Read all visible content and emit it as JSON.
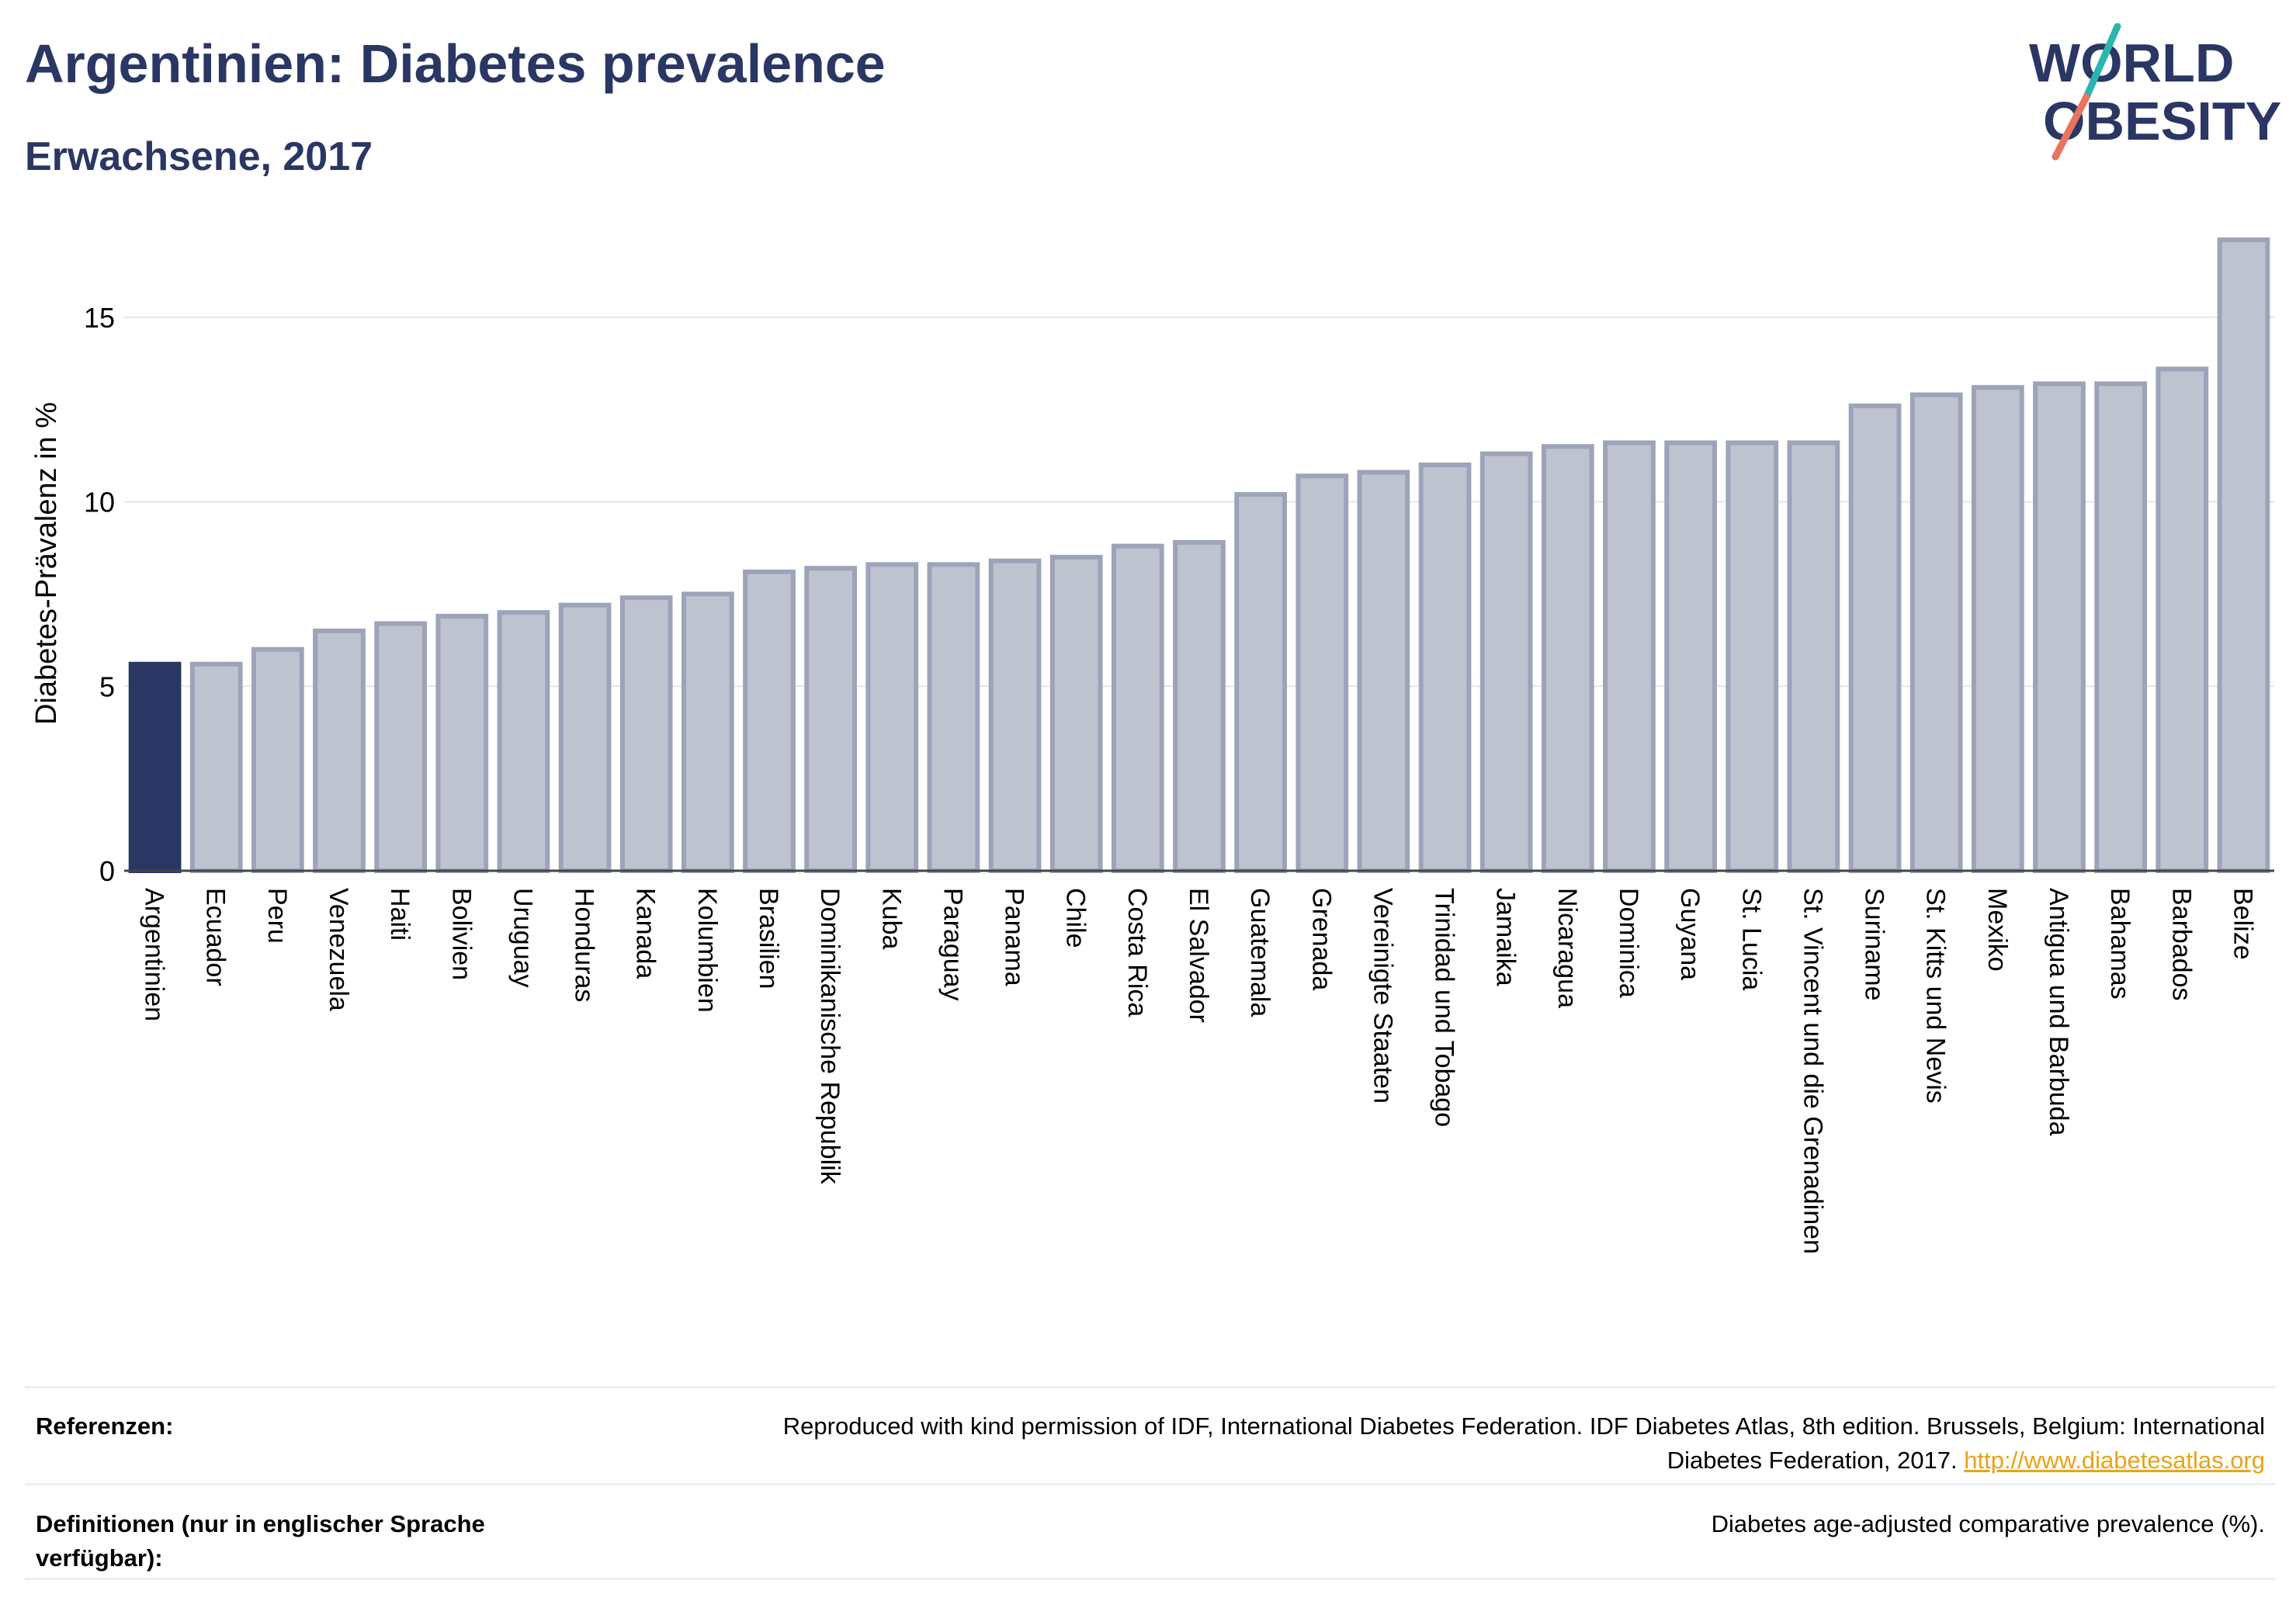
{
  "header": {
    "title": "Argentinien: Diabetes prevalence",
    "subtitle": "Erwachsene, 2017"
  },
  "logo": {
    "line1": "WORLD",
    "line2": "OBESITY"
  },
  "colors": {
    "title": "#2a3663",
    "highlight_bar": "#2a3663",
    "bar_fill": "#bfc3cf",
    "bar_stroke": "#9da3b8",
    "logo_teal": "#2bb5b0",
    "logo_coral": "#e8735f",
    "link": "#e8a317"
  },
  "chart_data": {
    "type": "bar",
    "ylabel": "Diabetes-Prävalenz in %",
    "xlabel": "",
    "ylim": [
      0,
      17.5
    ],
    "yticks": [
      0,
      5,
      10,
      15
    ],
    "grid": true,
    "highlight": "Argentinien",
    "categories": [
      "Argentinien",
      "Ecuador",
      "Peru",
      "Venezuela",
      "Haiti",
      "Bolivien",
      "Uruguay",
      "Honduras",
      "Kanada",
      "Kolumbien",
      "Brasilien",
      "Dominikanische Republik",
      "Kuba",
      "Paraguay",
      "Panama",
      "Chile",
      "Costa Rica",
      "El Salvador",
      "Guatemala",
      "Grenada",
      "Vereinigte Staaten",
      "Trinidad und Tobago",
      "Jamaika",
      "Nicaragua",
      "Dominica",
      "Guyana",
      "St. Lucia",
      "St. Vincent und die Grenadinen",
      "Suriname",
      "St. Kitts und Nevis",
      "Mexiko",
      "Antigua und Barbuda",
      "Bahamas",
      "Barbados",
      "Belize"
    ],
    "values": [
      5.6,
      5.6,
      6.0,
      6.5,
      6.7,
      6.9,
      7.0,
      7.2,
      7.4,
      7.5,
      8.1,
      8.2,
      8.3,
      8.3,
      8.4,
      8.5,
      8.8,
      8.9,
      10.2,
      10.7,
      10.8,
      11.0,
      11.3,
      11.5,
      11.6,
      11.6,
      11.6,
      11.6,
      12.6,
      12.9,
      13.1,
      13.2,
      13.2,
      13.6,
      17.1
    ]
  },
  "footer": {
    "references_label": "Referenzen:",
    "references_text": "Reproduced with kind permission of IDF, International Diabetes Federation. IDF Diabetes Atlas, 8th edition. Brussels, Belgium: International Diabetes Federation, 2017.",
    "references_link": "http://www.diabetesatlas.org",
    "definitions_label": "Definitionen (nur in englischer Sprache verfügbar):",
    "definitions_text": "Diabetes age-adjusted comparative prevalence (%)."
  }
}
